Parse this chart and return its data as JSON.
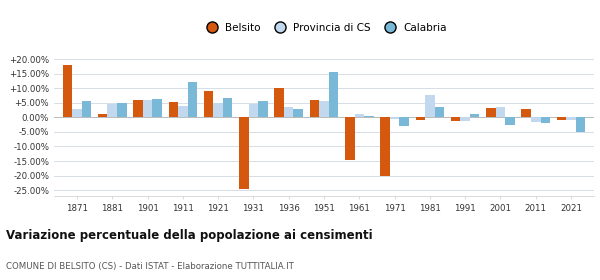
{
  "years": [
    1871,
    1881,
    1901,
    1911,
    1921,
    1931,
    1936,
    1951,
    1961,
    1971,
    1981,
    1991,
    2001,
    2011,
    2021
  ],
  "belsito": [
    18.0,
    1.2,
    6.0,
    5.2,
    9.0,
    -24.5,
    10.0,
    5.8,
    -14.5,
    -20.0,
    -1.0,
    -1.2,
    3.2,
    2.8,
    -1.0
  ],
  "provincia": [
    3.0,
    4.5,
    6.0,
    4.0,
    5.0,
    4.5,
    3.5,
    5.5,
    1.0,
    -0.5,
    7.5,
    -1.2,
    3.5,
    -1.5,
    -1.0
  ],
  "calabria": [
    5.5,
    5.0,
    6.2,
    12.0,
    6.5,
    5.5,
    3.0,
    15.5,
    0.5,
    -3.0,
    3.5,
    1.0,
    -2.5,
    -2.0,
    -5.0
  ],
  "belsito_color": "#d4580e",
  "provincia_color": "#c2d8ef",
  "calabria_color": "#7ab8d8",
  "bg_color": "#ffffff",
  "title": "Variazione percentuale della popolazione ai censimenti",
  "subtitle": "COMUNE DI BELSITO (CS) - Dati ISTAT - Elaborazione TUTTITALIA.IT",
  "ylim": [
    -27,
    22
  ],
  "yticks": [
    -25,
    -20,
    -15,
    -10,
    -5,
    0,
    5,
    10,
    15,
    20
  ],
  "bar_width": 0.27
}
